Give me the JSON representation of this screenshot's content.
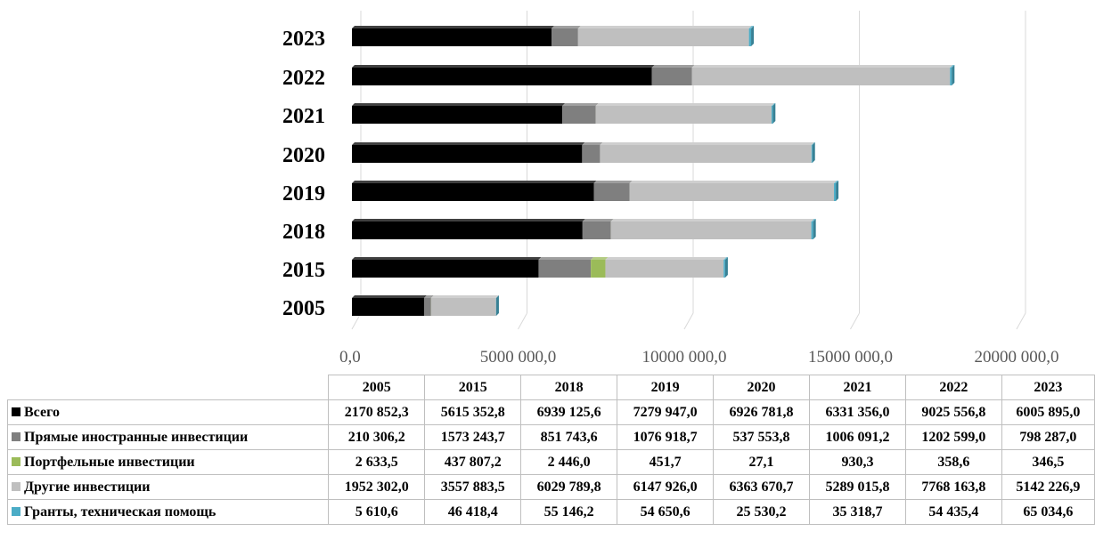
{
  "chart_data": {
    "type": "bar",
    "orientation": "horizontal",
    "stacked": true,
    "categories": [
      "2005",
      "2015",
      "2018",
      "2019",
      "2020",
      "2021",
      "2022",
      "2023"
    ],
    "xlim": [
      0,
      20000000
    ],
    "x_ticks": [
      0,
      5000000,
      10000000,
      15000000,
      20000000
    ],
    "x_tick_labels": [
      "0,0",
      "5000 000,0",
      "10000 000,0",
      "15000 000,0",
      "20000 000,0"
    ],
    "grid": true,
    "series": [
      {
        "name": "Всего",
        "color": "#000000",
        "values": [
          2170852.3,
          5615352.8,
          6939125.6,
          7279947.0,
          6926781.8,
          6331356.0,
          9025556.8,
          6005895.0
        ]
      },
      {
        "name": "Прямые иностранные инвестиции",
        "color": "#7f7f7f",
        "values": [
          210306.2,
          1573243.7,
          851743.6,
          1076918.7,
          537553.8,
          1006091.2,
          1202599.0,
          798287.0
        ]
      },
      {
        "name": "Портфельные инвестиции",
        "color": "#9bbb59",
        "values": [
          2633.5,
          437807.2,
          2446.0,
          451.7,
          27.1,
          930.3,
          358.6,
          346.5
        ]
      },
      {
        "name": "Другие инвестиции",
        "color": "#bfbfbf",
        "values": [
          1952302.0,
          3557883.5,
          6029789.8,
          6147926.0,
          6363670.7,
          5289015.8,
          7768163.8,
          5142226.9
        ]
      },
      {
        "name": "Гранты, техническая помощь",
        "color": "#4bacc6",
        "values": [
          5610.6,
          46418.4,
          55146.2,
          54650.6,
          25530.2,
          35318.7,
          54435.4,
          65034.6
        ]
      }
    ]
  },
  "table": {
    "headers": [
      "2005",
      "2015",
      "2018",
      "2019",
      "2020",
      "2021",
      "2022",
      "2023"
    ],
    "rows": [
      {
        "label": "Всего",
        "color": "#000000",
        "cells": [
          "2170 852,3",
          "5615 352,8",
          "6939 125,6",
          "7279 947,0",
          "6926 781,8",
          "6331 356,0",
          "9025 556,8",
          "6005 895,0"
        ]
      },
      {
        "label": "Прямые иностранные инвестиции",
        "color": "#7f7f7f",
        "cells": [
          "210 306,2",
          "1573 243,7",
          "851 743,6",
          "1076 918,7",
          "537 553,8",
          "1006 091,2",
          "1202 599,0",
          "798 287,0"
        ]
      },
      {
        "label": "Портфельные инвестиции",
        "color": "#9bbb59",
        "cells": [
          "2 633,5",
          "437 807,2",
          "2 446,0",
          "451,7",
          "27,1",
          "930,3",
          "358,6",
          "346,5"
        ]
      },
      {
        "label": "Другие инвестиции",
        "color": "#bfbfbf",
        "cells": [
          "1952 302,0",
          "3557 883,5",
          "6029 789,8",
          "6147 926,0",
          "6363 670,7",
          "5289 015,8",
          "7768 163,8",
          "5142 226,9"
        ]
      },
      {
        "label": "Гранты, техническая помощь",
        "color": "#4bacc6",
        "cells": [
          "5 610,6",
          "46 418,4",
          "55 146,2",
          "54 650,6",
          "25 530,2",
          "35 318,7",
          "54 435,4",
          "65 034,6"
        ]
      }
    ]
  }
}
